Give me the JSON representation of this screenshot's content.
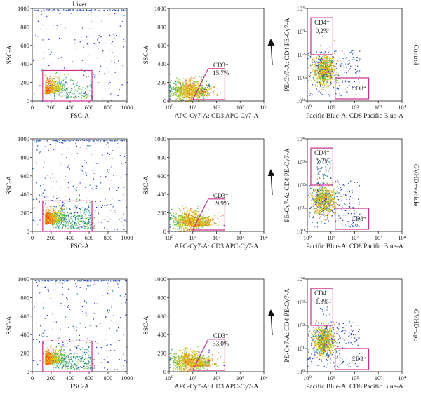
{
  "colors": {
    "gate": "#c8308c",
    "arrow": "#111111",
    "density_low": "#2b2bd6",
    "density_mid": "#2fb86b",
    "density_high": "#f0d020",
    "density_peak": "#e03010"
  },
  "rows": [
    {
      "row_label": "Control",
      "gates": {
        "fsc_ssc": "",
        "cd3_label": "CD3⁺",
        "cd3_pct": "15,7%",
        "cd4_label": "CD4⁺",
        "cd4_pct": "0,2%",
        "cd8_label": "CD8⁺"
      }
    },
    {
      "row_label": "GVHD+vehicle",
      "gates": {
        "fsc_ssc": "",
        "cd3_label": "CD3⁺",
        "cd3_pct": "39,9%",
        "cd4_label": "CD4⁺",
        "cd4_pct": "5,6%",
        "cd8_label": "CD8⁺"
      }
    },
    {
      "row_label": "GVHD+apo",
      "gates": {
        "fsc_ssc": "",
        "cd3_label": "CD3⁺",
        "cd3_pct": "33,0%",
        "cd4_label": "CD4⁺",
        "cd4_pct": "1,3%",
        "cd8_label": "CD8⁺"
      }
    }
  ],
  "chart_data": [
    {
      "type": "scatter",
      "panel": "fsc-ssc",
      "title": "Liver",
      "xlabel": "FSC-A",
      "ylabel": "SSC-A",
      "xlim": [
        0,
        1000
      ],
      "ylim": [
        0,
        1000
      ],
      "xticks": [
        "0",
        "200",
        "400",
        "600",
        "800",
        "1000"
      ],
      "yticks": [
        "0",
        "200",
        "400",
        "600",
        "800",
        "1000"
      ],
      "gate": {
        "x": [
          110,
          630
        ],
        "y": [
          0,
          330
        ]
      }
    },
    {
      "type": "scatter",
      "panel": "cd3",
      "title": "",
      "xlabel": "APC-Cy7-A: CD3 APC-Cy7-A",
      "ylabel": "SSC-A",
      "xscale": "log",
      "xlim": [
        1,
        10000
      ],
      "ylim": [
        0,
        1000
      ],
      "xticks": [
        "10⁰",
        "10¹",
        "10²",
        "10³",
        "10⁴"
      ],
      "yticks": [
        "0",
        "200",
        "400",
        "600",
        "800",
        "1000"
      ],
      "gate": {
        "x": [
          10,
          150
        ],
        "y": [
          0,
          350
        ]
      }
    },
    {
      "type": "scatter",
      "panel": "cd4-cd8",
      "title": "",
      "xlabel": "Pacific Blue-A: CD8 Pacific Blue-A",
      "ylabel": "PE-Cy7-A: CD4 PE-Cy7-A",
      "xscale": "log",
      "yscale": "log",
      "xlim": [
        1,
        10000
      ],
      "ylim": [
        1,
        10000
      ],
      "xticks": [
        "10⁰",
        "10¹",
        "10²",
        "10³",
        "10⁴"
      ],
      "yticks": [
        "10⁰",
        "10¹",
        "10²",
        "10³",
        "10⁴"
      ],
      "cd4_gate": {
        "x": [
          1,
          12
        ],
        "y": [
          100,
          4000
        ]
      },
      "cd8_gate": {
        "x": [
          15,
          300
        ],
        "y": [
          1,
          10
        ]
      }
    }
  ]
}
